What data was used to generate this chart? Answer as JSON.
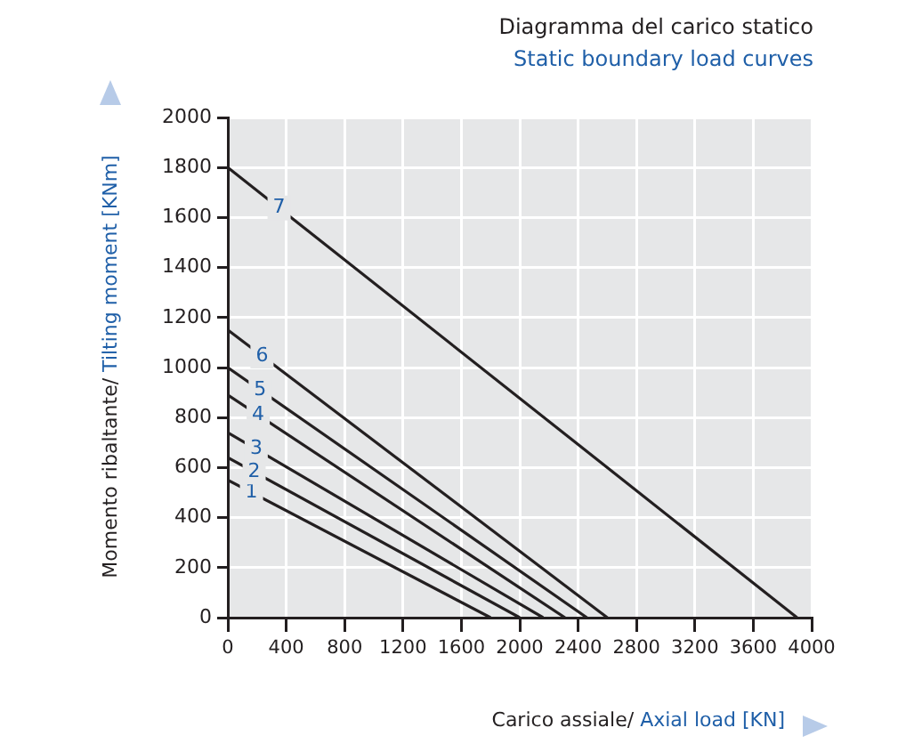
{
  "chart_data": {
    "type": "line",
    "title": "Diagramma del carico statico",
    "subtitle": "Static boundary load curves",
    "xlabel": "Carico assiale/ Axial load [KN]",
    "ylabel": "Momento ribaltante/ Tilting moment [KNm]",
    "series": [
      {
        "name": "1",
        "color": "#231f20",
        "x": [
          0,
          1800
        ],
        "values": [
          550,
          0
        ]
      },
      {
        "name": "2",
        "color": "#231f20",
        "x": [
          0,
          2000
        ],
        "values": [
          640,
          0
        ]
      },
      {
        "name": "3",
        "color": "#231f20",
        "x": [
          0,
          2160
        ],
        "values": [
          740,
          0
        ]
      },
      {
        "name": "4",
        "color": "#231f20",
        "x": [
          0,
          2310
        ],
        "values": [
          890,
          0
        ]
      },
      {
        "name": "5",
        "color": "#231f20",
        "x": [
          0,
          2460
        ],
        "values": [
          1000,
          0
        ]
      },
      {
        "name": "6",
        "color": "#231f20",
        "x": [
          0,
          2600
        ],
        "values": [
          1150,
          0
        ]
      },
      {
        "name": "7",
        "color": "#231f20",
        "x": [
          0,
          3900
        ],
        "values": [
          1800,
          0
        ]
      }
    ],
    "xlim": [
      0,
      4000
    ],
    "xticks": [
      0,
      400,
      800,
      1200,
      1600,
      2000,
      2400,
      2800,
      3200,
      3600,
      4000
    ],
    "ylim": [
      0,
      2000
    ],
    "yticks": [
      0,
      200,
      400,
      600,
      800,
      1000,
      1200,
      1400,
      1600,
      1800,
      2000
    ],
    "grid": true,
    "legend": false,
    "marker": "none",
    "line_style": "solid"
  }
}
